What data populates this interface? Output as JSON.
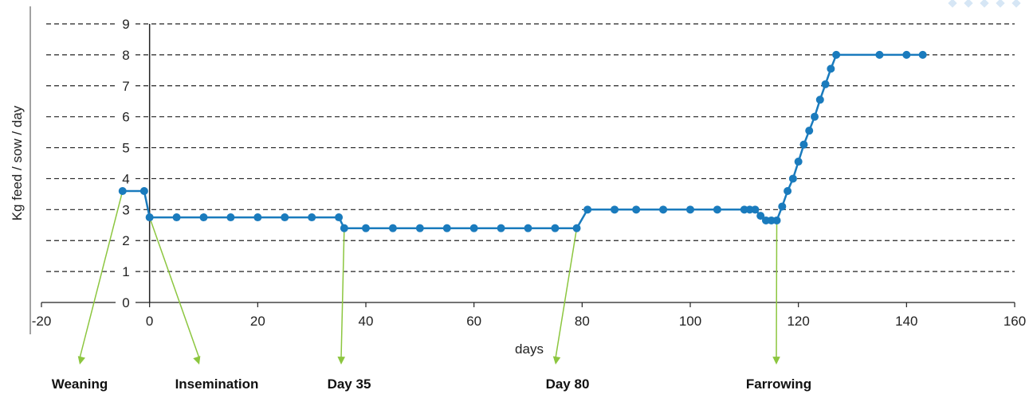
{
  "chart_data": {
    "type": "line",
    "xlabel": "days",
    "ylabel": "Kg feed / sow / day",
    "xlim": [
      -20,
      160
    ],
    "ylim": [
      0,
      9
    ],
    "x_ticks": [
      -20,
      0,
      20,
      40,
      60,
      80,
      100,
      120,
      140,
      160
    ],
    "y_ticks": [
      0,
      1,
      2,
      3,
      4,
      5,
      6,
      7,
      8,
      9
    ],
    "grid": "horizontal dashed",
    "series": [
      {
        "color": "#1a7bbd",
        "points": [
          [
            -5,
            3.6
          ],
          [
            -1,
            3.6
          ],
          [
            0,
            2.75
          ],
          [
            5,
            2.75
          ],
          [
            10,
            2.75
          ],
          [
            15,
            2.75
          ],
          [
            20,
            2.75
          ],
          [
            25,
            2.75
          ],
          [
            30,
            2.75
          ],
          [
            35,
            2.75
          ],
          [
            36,
            2.4
          ],
          [
            40,
            2.4
          ],
          [
            45,
            2.4
          ],
          [
            50,
            2.4
          ],
          [
            55,
            2.4
          ],
          [
            60,
            2.4
          ],
          [
            65,
            2.4
          ],
          [
            70,
            2.4
          ],
          [
            75,
            2.4
          ],
          [
            79,
            2.4
          ],
          [
            81,
            3.0
          ],
          [
            86,
            3.0
          ],
          [
            90,
            3.0
          ],
          [
            95,
            3.0
          ],
          [
            100,
            3.0
          ],
          [
            105,
            3.0
          ],
          [
            110,
            3.0
          ],
          [
            111,
            3.0
          ],
          [
            112,
            3.0
          ],
          [
            113,
            2.8
          ],
          [
            114,
            2.65
          ],
          [
            115,
            2.65
          ],
          [
            116,
            2.65
          ],
          [
            117,
            3.1
          ],
          [
            118,
            3.6
          ],
          [
            119,
            4.0
          ],
          [
            120,
            4.55
          ],
          [
            121,
            5.1
          ],
          [
            122,
            5.55
          ],
          [
            123,
            6.0
          ],
          [
            124,
            6.55
          ],
          [
            125,
            7.05
          ],
          [
            126,
            7.55
          ],
          [
            127,
            8.0
          ],
          [
            135,
            8.0
          ],
          [
            140,
            8.0
          ],
          [
            143,
            8.0
          ]
        ]
      }
    ],
    "annotations": [
      {
        "label": "Weaning",
        "x": -5,
        "y": 3.6
      },
      {
        "label": "Insemination",
        "x": 0,
        "y": 2.75
      },
      {
        "label": "Day 35",
        "x": 36,
        "y": 2.4
      },
      {
        "label": "Day 80",
        "x": 79,
        "y": 2.4
      },
      {
        "label": "Farrowing",
        "x": 116,
        "y": 2.65
      }
    ],
    "colors": {
      "line": "#1a7bbd",
      "annotation_arrow": "#8cc63f",
      "grid": "#222222"
    }
  }
}
